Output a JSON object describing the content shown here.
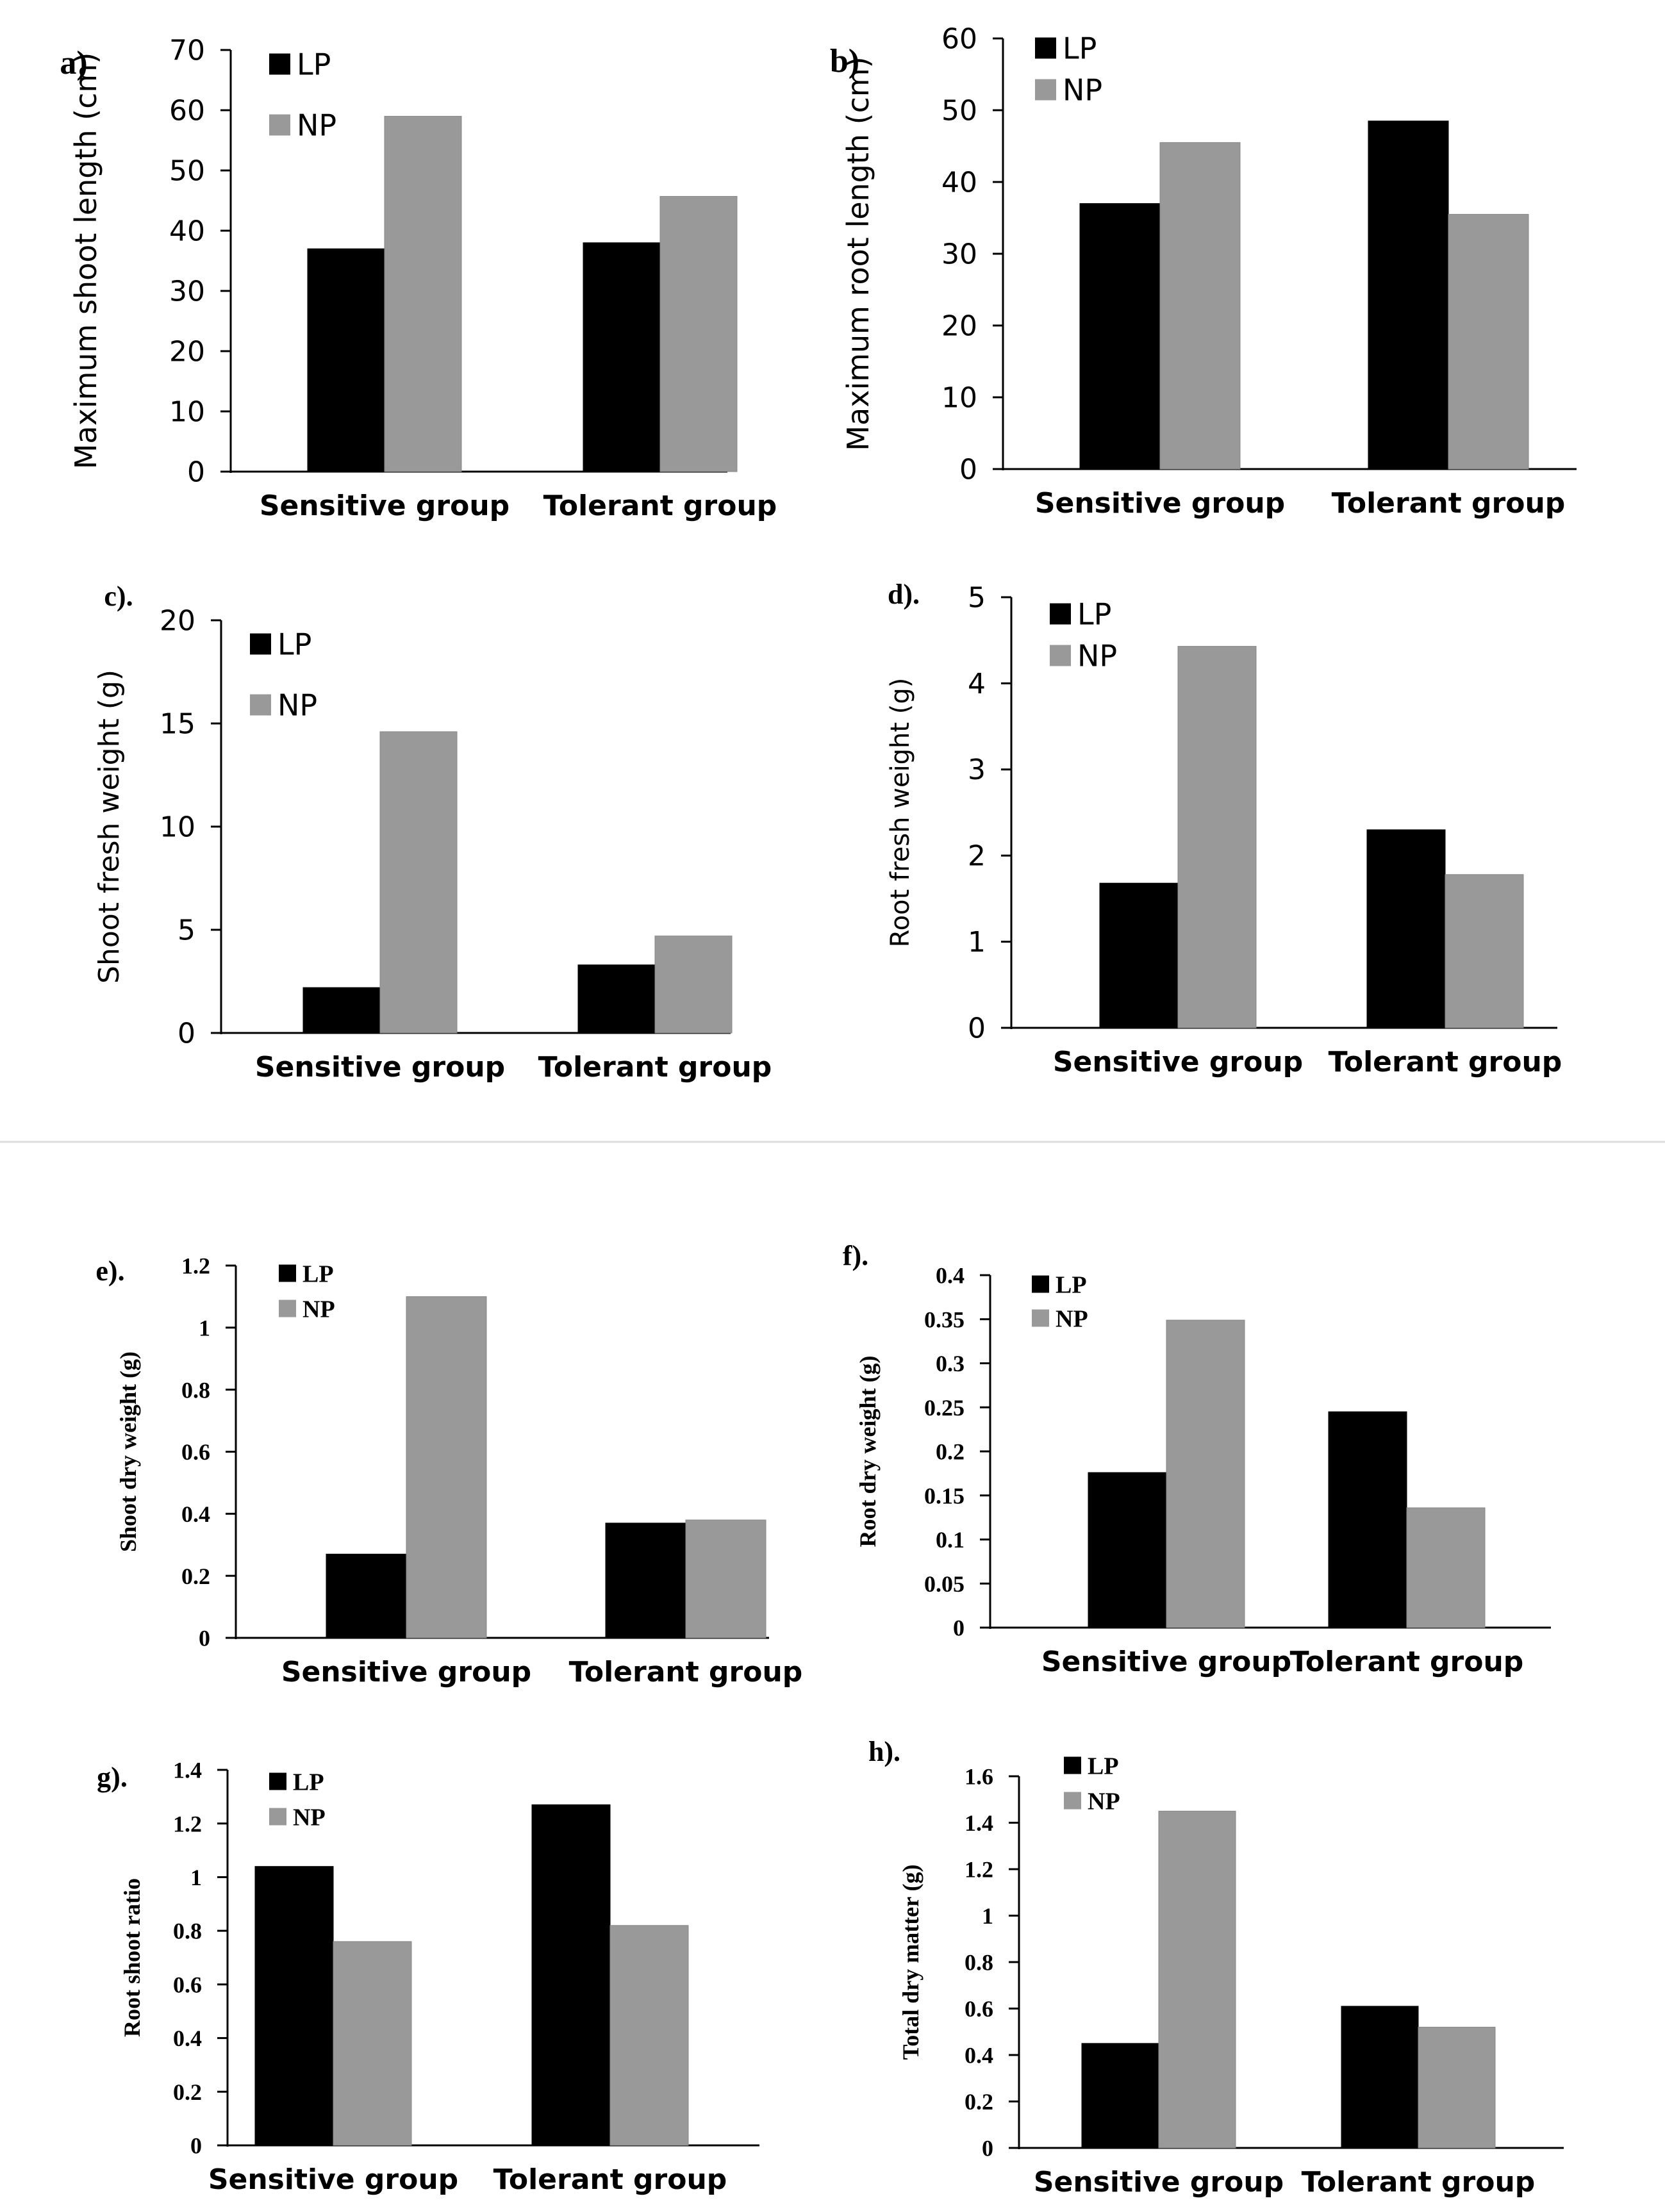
{
  "colors": {
    "LP": "#000000",
    "NP": "#999999",
    "axis": "#000000",
    "separator": "#dddddd"
  },
  "chart_data": [
    {
      "panel_label": "a)",
      "type": "bar",
      "font": "sans",
      "categories": [
        "Sensitive group",
        "Tolerant group"
      ],
      "ylabel": "Maximum shoot length (cm)",
      "ylim": [
        0,
        70
      ],
      "yticks": [
        "0",
        "10",
        "20",
        "30",
        "40",
        "50",
        "60",
        "70"
      ],
      "legend": "top-left",
      "grid": false,
      "series": [
        {
          "name": "LP",
          "values": [
            37,
            38
          ]
        },
        {
          "name": "NP",
          "values": [
            59,
            45.7
          ]
        }
      ]
    },
    {
      "panel_label": "b)",
      "type": "bar",
      "font": "sans",
      "categories": [
        "Sensitive group",
        "Tolerant group"
      ],
      "ylabel": "Maximum root length (cm)",
      "ylim": [
        0,
        60
      ],
      "yticks": [
        "0",
        "10",
        "20",
        "30",
        "40",
        "50",
        "60"
      ],
      "legend": "top-left",
      "grid": false,
      "series": [
        {
          "name": "LP",
          "values": [
            37,
            48.5
          ]
        },
        {
          "name": "NP",
          "values": [
            45.5,
            35.5
          ]
        }
      ]
    },
    {
      "panel_label": "c).",
      "type": "bar",
      "font": "sans",
      "categories": [
        "Sensitive group",
        "Tolerant group"
      ],
      "ylabel": "Shoot fresh weight (g)",
      "ylim": [
        0,
        20
      ],
      "yticks": [
        "0",
        "5",
        "10",
        "15",
        "20"
      ],
      "legend": "top-left",
      "grid": false,
      "series": [
        {
          "name": "LP",
          "values": [
            2.2,
            3.3
          ]
        },
        {
          "name": "NP",
          "values": [
            14.6,
            4.7
          ]
        }
      ]
    },
    {
      "panel_label": "d).",
      "type": "bar",
      "font": "sans",
      "categories": [
        "Sensitive group",
        "Tolerant group"
      ],
      "ylabel": "Root fresh weight (g)",
      "ylim": [
        0,
        5
      ],
      "yticks": [
        "0",
        "1",
        "2",
        "3",
        "4",
        "5"
      ],
      "legend": "top-left",
      "grid": false,
      "series": [
        {
          "name": "LP",
          "values": [
            1.68,
            2.3
          ]
        },
        {
          "name": "NP",
          "values": [
            4.43,
            1.78
          ]
        }
      ]
    },
    {
      "panel_label": "e).",
      "type": "bar",
      "font": "serif",
      "categories": [
        "Sensitive group",
        "Tolerant group"
      ],
      "ylabel": "Shoot dry weight (g)",
      "ylim": [
        0,
        1.2
      ],
      "yticks": [
        "0",
        "0.2",
        "0.4",
        "0.6",
        "0.8",
        "1",
        "1.2"
      ],
      "legend": "top-left",
      "grid": false,
      "series": [
        {
          "name": "LP",
          "values": [
            0.27,
            0.37
          ]
        },
        {
          "name": "NP",
          "values": [
            1.1,
            0.38
          ]
        }
      ]
    },
    {
      "panel_label": "f).",
      "type": "bar",
      "font": "serif",
      "categories": [
        "Sensitive group",
        "Tolerant group"
      ],
      "ylabel": "Root dry weight (g)",
      "ylim": [
        0,
        0.4
      ],
      "yticks": [
        "0",
        "0.05",
        "0.1",
        "0.15",
        "0.2",
        "0.25",
        "0.3",
        "0.35",
        "0.4"
      ],
      "legend": "top-left",
      "grid": false,
      "series": [
        {
          "name": "LP",
          "values": [
            0.176,
            0.245
          ]
        },
        {
          "name": "NP",
          "values": [
            0.349,
            0.136
          ]
        }
      ]
    },
    {
      "panel_label": "g).",
      "type": "bar",
      "font": "serif",
      "categories": [
        "Sensitive group",
        "Tolerant group"
      ],
      "ylabel": "Root shoot ratio",
      "ylim": [
        0,
        1.4
      ],
      "yticks": [
        "0",
        "0.2",
        "0.4",
        "0.6",
        "0.8",
        "1",
        "1.2",
        "1.4"
      ],
      "legend": "top-left",
      "grid": false,
      "series": [
        {
          "name": "LP",
          "values": [
            1.04,
            1.27
          ]
        },
        {
          "name": "NP",
          "values": [
            0.76,
            0.82
          ]
        }
      ]
    },
    {
      "panel_label": "h).",
      "type": "bar",
      "font": "serif",
      "categories": [
        "Sensitive group",
        "Tolerant group"
      ],
      "ylabel": "Total dry matter (g)",
      "ylim": [
        0,
        1.6
      ],
      "yticks": [
        "0",
        "0.2",
        "0.4",
        "0.6",
        "0.8",
        "1",
        "1.2",
        "1.4",
        "1.6"
      ],
      "legend": "top-left",
      "grid": false,
      "series": [
        {
          "name": "LP",
          "values": [
            0.45,
            0.61
          ]
        },
        {
          "name": "NP",
          "values": [
            1.45,
            0.52
          ]
        }
      ]
    }
  ]
}
